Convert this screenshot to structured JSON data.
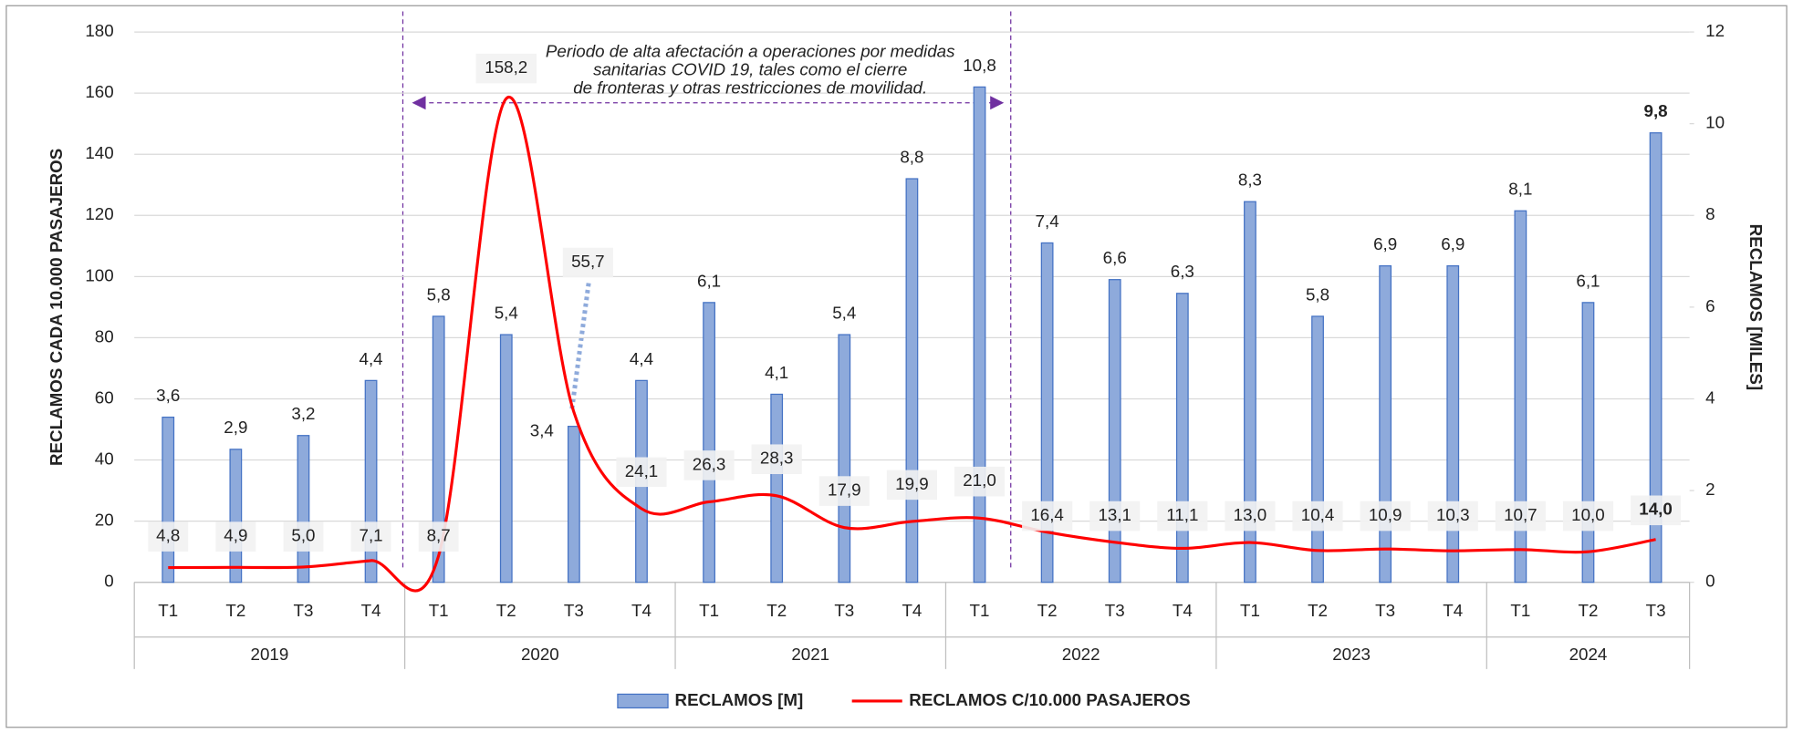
{
  "chart_data": {
    "type": "bar-line",
    "category_groups": [
      {
        "name": "2019",
        "categories": [
          "T1",
          "T2",
          "T3",
          "T4"
        ]
      },
      {
        "name": "2020",
        "categories": [
          "T1",
          "T2",
          "T3",
          "T4"
        ]
      },
      {
        "name": "2021",
        "categories": [
          "T1",
          "T2",
          "T3",
          "T4"
        ]
      },
      {
        "name": "2022",
        "categories": [
          "T1",
          "T2",
          "T3",
          "T4"
        ]
      },
      {
        "name": "2023",
        "categories": [
          "T1",
          "T2",
          "T3",
          "T4"
        ]
      },
      {
        "name": "2024",
        "categories": [
          "T1",
          "T2",
          "T3"
        ]
      }
    ],
    "series": [
      {
        "name": "RECLAMOS [M]",
        "type": "bar",
        "axis": "y2",
        "color": "#8eaadb",
        "values": [
          3.6,
          2.9,
          3.2,
          4.4,
          5.8,
          5.4,
          3.4,
          4.4,
          6.1,
          4.1,
          5.4,
          8.8,
          10.8,
          7.4,
          6.6,
          6.3,
          8.3,
          5.8,
          6.9,
          6.9,
          8.1,
          6.1,
          9.8
        ],
        "value_labels": [
          "3,6",
          "2,9",
          "3,2",
          "4,4",
          "5,8",
          "5,4",
          "3,4",
          "4,4",
          "6,1",
          "4,1",
          "5,4",
          "8,8",
          "10,8",
          "7,4",
          "6,6",
          "6,3",
          "8,3",
          "5,8",
          "6,9",
          "6,9",
          "8,1",
          "6,1",
          "9,8"
        ]
      },
      {
        "name": "RECLAMOS C/10.000 PASAJEROS",
        "type": "line",
        "axis": "y",
        "color": "#ff0000",
        "values": [
          4.8,
          4.9,
          5.0,
          7.1,
          8.7,
          158.2,
          55.7,
          24.1,
          26.3,
          28.3,
          17.9,
          19.9,
          21.0,
          16.4,
          13.1,
          11.1,
          13.0,
          10.4,
          10.9,
          10.3,
          10.7,
          10.0,
          14.0
        ],
        "value_labels": [
          "4,8",
          "4,9",
          "5,0",
          "7,1",
          "8,7",
          "158,2",
          "55,7",
          "24,1",
          "26,3",
          "28,3",
          "17,9",
          "19,9",
          "21,0",
          "16,4",
          "13,1",
          "11,1",
          "13,0",
          "10,4",
          "10,9",
          "10,3",
          "10,7",
          "10,0",
          "14,0"
        ]
      }
    ],
    "y_label": "RECLAMOS CADA 10.000 PASAJEROS",
    "y2_label": "RECLAMOS [MILES]",
    "ylim": [
      0,
      180
    ],
    "yticks": [
      0,
      20,
      40,
      60,
      80,
      100,
      120,
      140,
      160,
      180
    ],
    "y2lim": [
      0,
      12
    ],
    "y2ticks": [
      0,
      2,
      4,
      6,
      8,
      10,
      12
    ],
    "grid": true,
    "annotation": [
      "Periodo de alta afectación a operaciones por medidas",
      "sanitarias COVID 19, tales como el cierre",
      "de fronteras y otras restricciones de movilidad."
    ]
  }
}
